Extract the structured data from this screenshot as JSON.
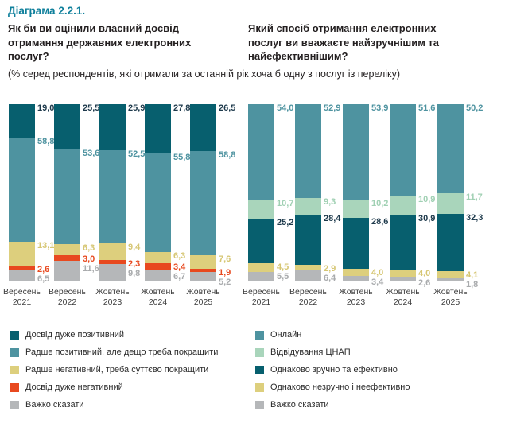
{
  "header": {
    "diagram_label": "Діаграма 2.2.1.",
    "question_left": "Як би ви оцінили власний досвід отримання державних електронних послуг?",
    "question_right": "Який спосіб отримання електронних послуг ви вважаєте найзручнішим та найефективнішим?",
    "subtitle": "(% серед респондентів, які отримали за останній рік хоча б одну з послуг із переліку)",
    "accent_color": "#0e7f9b"
  },
  "chart_data": [
    {
      "type": "bar",
      "stacked": true,
      "orientation": "vertical",
      "title": "Як би ви оцінили власний досвід отримання державних електронних послуг?",
      "unit": "%",
      "ylim": [
        0,
        100
      ],
      "grid": false,
      "legend_position": "bottom-left",
      "categories": [
        "Вересень 2021",
        "Вересень 2022",
        "Жовтень 2023",
        "Жовтень 2024",
        "Жовтень 2025"
      ],
      "series": [
        {
          "name": "Досвід дуже позитивний",
          "color": "#075f6e",
          "label_color": "#1e3a4c",
          "values": [
            19.0,
            25.5,
            25.9,
            27.8,
            26.5
          ]
        },
        {
          "name": "Радше позитивний, але дещо треба покращити",
          "color": "#4e93a0",
          "label_color": "#4e93a0",
          "values": [
            58.8,
            53.6,
            52.5,
            55.8,
            58.8
          ]
        },
        {
          "name": "Радше негативний, треба суттєво покращити",
          "color": "#ddcf7d",
          "label_color": "#d6c673",
          "values": [
            13.1,
            6.3,
            9.4,
            6.3,
            7.6
          ]
        },
        {
          "name": "Досвід дуже негативний",
          "color": "#e8491f",
          "label_color": "#e8491f",
          "values": [
            2.6,
            3.0,
            2.3,
            3.4,
            1.9
          ]
        },
        {
          "name": "Важко сказати",
          "color": "#b5b7b9",
          "label_color": "#a9abad",
          "values": [
            6.5,
            11.6,
            9.8,
            6.7,
            5.2
          ]
        }
      ]
    },
    {
      "type": "bar",
      "stacked": true,
      "orientation": "vertical",
      "title": "Який спосіб отримання електронних послуг ви вважаєте найзручнішим та найефективнішим?",
      "unit": "%",
      "ylim": [
        0,
        100
      ],
      "grid": false,
      "legend_position": "bottom-left",
      "categories": [
        "Вересень 2021",
        "Вересень 2022",
        "Жовтень 2023",
        "Жовтень 2024",
        "Жовтень 2025"
      ],
      "series": [
        {
          "name": "Онлайн",
          "color": "#4e93a0",
          "label_color": "#4e93a0",
          "values": [
            54.0,
            52.9,
            53.9,
            51.6,
            50.2
          ]
        },
        {
          "name": "Відвідування ЦНАП",
          "color": "#a9d5bb",
          "label_color": "#a0d0b3",
          "values": [
            10.7,
            9.3,
            10.2,
            10.9,
            11.7
          ]
        },
        {
          "name": "Однаково зручно та ефективно",
          "color": "#075f6e",
          "label_color": "#1e3a4c",
          "values": [
            25.2,
            28.4,
            28.6,
            30.9,
            32.3
          ]
        },
        {
          "name": "Однаково незручно і неефективно",
          "color": "#ddcf7d",
          "label_color": "#d6c673",
          "values": [
            4.5,
            2.9,
            4.0,
            4.0,
            4.1
          ]
        },
        {
          "name": "Важко сказати",
          "color": "#b5b7b9",
          "label_color": "#a9abad",
          "values": [
            5.5,
            6.4,
            3.4,
            2.6,
            1.8
          ]
        }
      ]
    }
  ]
}
